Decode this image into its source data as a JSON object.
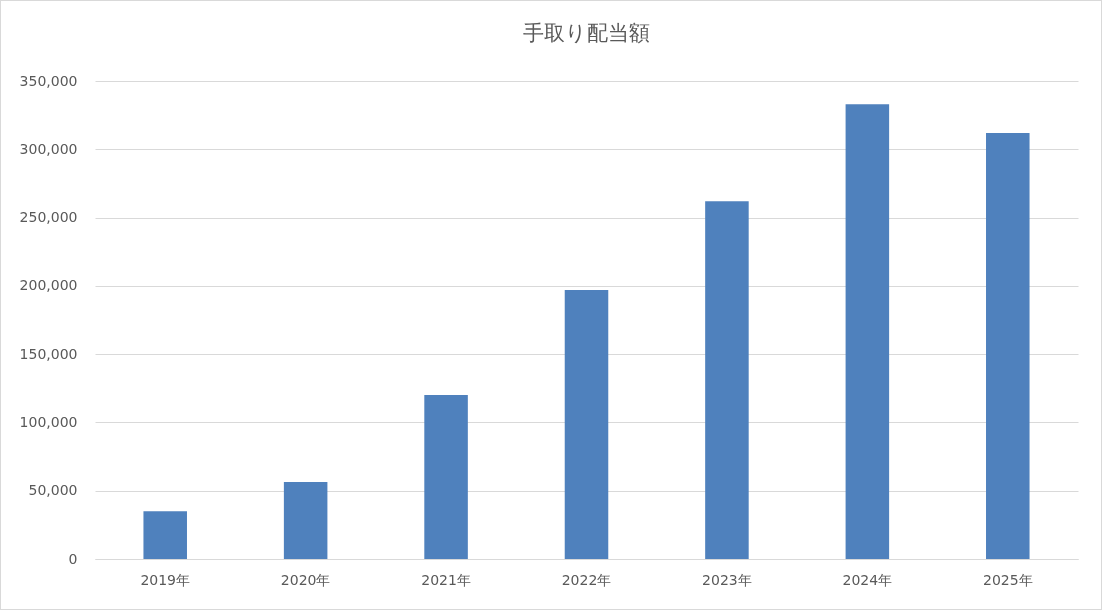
{
  "chart_data": {
    "type": "bar",
    "title": "手取り配当額",
    "categories": [
      "2019年",
      "2020年",
      "2021年",
      "2022年",
      "2023年",
      "2024年",
      "2025年"
    ],
    "values": [
      35000,
      56400,
      120000,
      197000,
      262000,
      333000,
      312000
    ],
    "color": "#4f81bd",
    "ylim": [
      0,
      350000
    ],
    "yticks": [
      0,
      {
        "value": 50000,
        "label": "50,000"
      },
      {
        "value": 100000,
        "label": "100,000"
      },
      {
        "value": 150000,
        "label": "150,000"
      },
      {
        "value": 200000,
        "label": "200,000"
      },
      {
        "value": 250000,
        "label": "250,000"
      },
      {
        "value": 300000,
        "label": "300,000"
      },
      {
        "value": 350000,
        "label": "350,000"
      }
    ],
    "grid": "y"
  }
}
